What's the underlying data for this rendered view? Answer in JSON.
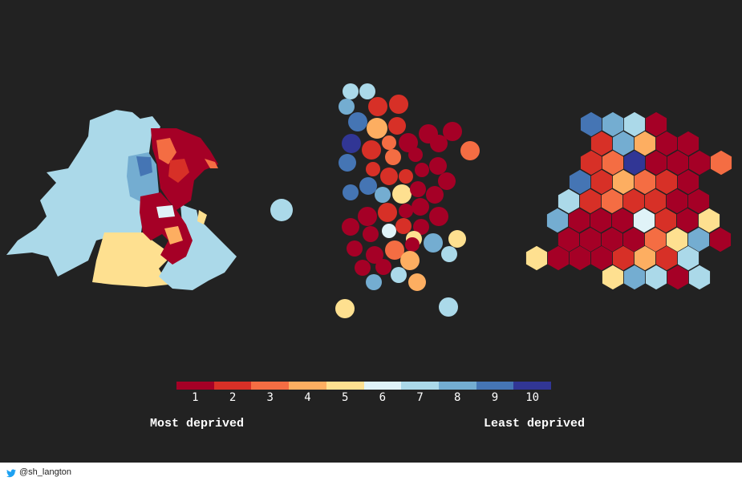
{
  "legend": {
    "ticks": [
      "1",
      "2",
      "3",
      "4",
      "5",
      "6",
      "7",
      "8",
      "9",
      "10"
    ],
    "colors": [
      "#a50026",
      "#d73027",
      "#f46d43",
      "#fdae61",
      "#fee090",
      "#e0f3f8",
      "#abd9e9",
      "#74add1",
      "#4575b4",
      "#313695"
    ],
    "low_label": "Most deprived",
    "high_label": "Least deprived"
  },
  "footer": {
    "icon": "twitter-icon",
    "handle": "@sh_langton"
  }
}
